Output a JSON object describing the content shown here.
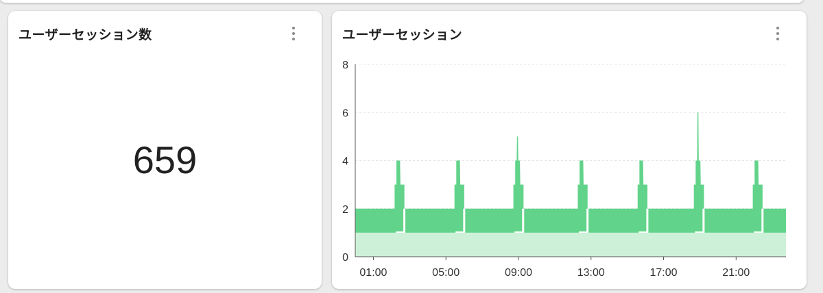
{
  "count_card": {
    "title": "ユーザーセッション数",
    "value": "659",
    "menu_icon": "more-vert-icon"
  },
  "chart_card": {
    "title": "ユーザーセッション",
    "menu_icon": "more-vert-icon"
  },
  "chart_data": {
    "type": "area",
    "title": "ユーザーセッション",
    "xlabel": "",
    "ylabel": "",
    "ylim": [
      0,
      8
    ],
    "xlim_hours": [
      0,
      23.75
    ],
    "yticks": [
      "0",
      "2",
      "4",
      "6",
      "8"
    ],
    "xticks": [
      {
        "label": "01:00",
        "hour": 1
      },
      {
        "label": "05:00",
        "hour": 5
      },
      {
        "label": "09:00",
        "hour": 9
      },
      {
        "label": "13:00",
        "hour": 13
      },
      {
        "label": "17:00",
        "hour": 17
      },
      {
        "label": "21:00",
        "hour": 21
      }
    ],
    "grid": true,
    "series": [
      {
        "color": "#62d38a",
        "baseline_band": [
          1,
          2
        ],
        "spikes": [
          {
            "hour": 2.45,
            "peak": 4
          },
          {
            "hour": 5.75,
            "peak": 4
          },
          {
            "hour": 9.0,
            "peak": 5
          },
          {
            "hour": 12.55,
            "peak": 4
          },
          {
            "hour": 15.85,
            "peak": 4
          },
          {
            "hour": 18.95,
            "peak": 6
          },
          {
            "hour": 22.2,
            "peak": 4
          }
        ]
      },
      {
        "color": "#cdf1d8",
        "baseline_band": [
          0,
          1
        ]
      }
    ]
  }
}
